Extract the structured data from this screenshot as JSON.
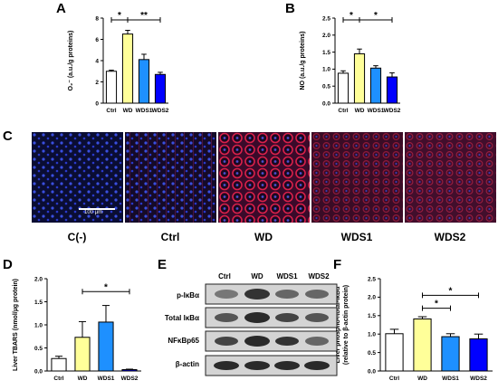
{
  "panels": {
    "A": "A",
    "B": "B",
    "C": "C",
    "D": "D",
    "E": "E",
    "F": "F"
  },
  "colors": {
    "ctrl": "#ffffff",
    "wd": "#ffff99",
    "wds1": "#1e90ff",
    "wds2": "#0000ff",
    "error": "#000000"
  },
  "chart_data": [
    {
      "id": "A",
      "type": "bar",
      "ylabel": "O₂⁻ (a.u./g proteins)",
      "categories": [
        "Ctrl",
        "WD",
        "WDS1",
        "WDS2"
      ],
      "values": [
        3.0,
        6.5,
        4.1,
        2.7
      ],
      "errors": [
        0.1,
        0.35,
        0.5,
        0.2
      ],
      "ylim": [
        0,
        8
      ],
      "yticks": [
        "0",
        "2",
        "4",
        "6",
        "8"
      ],
      "significance": [
        {
          "from": 0,
          "to": 1,
          "label": "*"
        },
        {
          "from": 1,
          "to": 3,
          "label": "**"
        }
      ]
    },
    {
      "id": "B",
      "type": "bar",
      "ylabel": "NO (a.u./g proteins)",
      "categories": [
        "Ctrl",
        "WD",
        "WDS1",
        "WDS2"
      ],
      "values": [
        0.88,
        1.45,
        1.03,
        0.77
      ],
      "errors": [
        0.07,
        0.14,
        0.07,
        0.12
      ],
      "ylim": [
        0,
        2.5
      ],
      "yticks": [
        "0.0",
        "0.5",
        "1.0",
        "1.5",
        "2.0",
        "2.5"
      ],
      "significance": [
        {
          "from": 0,
          "to": 1,
          "label": "*"
        },
        {
          "from": 1,
          "to": 3,
          "label": "*"
        }
      ]
    },
    {
      "id": "D",
      "type": "bar",
      "ylabel": "Liver TBARS (nmol/µg protein)",
      "categories": [
        "Ctrl",
        "WD",
        "WDS1",
        "WDS2"
      ],
      "values": [
        0.27,
        0.73,
        1.06,
        0.03
      ],
      "errors": [
        0.05,
        0.34,
        0.36,
        0.01
      ],
      "ylim": [
        0,
        2.0
      ],
      "yticks": [
        "0.0",
        "0.5",
        "1.0",
        "1.5",
        "2.0"
      ],
      "significance": [
        {
          "from": 1,
          "to": 3,
          "label": "*"
        }
      ]
    },
    {
      "id": "F",
      "type": "bar",
      "ylabel": "Liver phospho-/total-IκBα (relative to β-actin protein)",
      "categories": [
        "Ctrl",
        "WD",
        "WDS1",
        "WDS2"
      ],
      "values": [
        1.01,
        1.41,
        0.93,
        0.87
      ],
      "errors": [
        0.12,
        0.06,
        0.08,
        0.13
      ],
      "ylim": [
        0,
        2.5
      ],
      "yticks": [
        "0.0",
        "0.5",
        "1.0",
        "1.5",
        "2.0",
        "2.5"
      ],
      "significance": [
        {
          "from": 1,
          "to": 2,
          "label": "*"
        },
        {
          "from": 1,
          "to": 3,
          "label": "*"
        }
      ]
    }
  ],
  "microscopy": {
    "labels": [
      "C(-)",
      "Ctrl",
      "WD",
      "WDS1",
      "WDS2"
    ],
    "scale_bar": "100 µm"
  },
  "blot": {
    "lanes": [
      "Ctrl",
      "WD",
      "WDS1",
      "WDS2"
    ],
    "rows": [
      "p-IκBα",
      "Total IκBα",
      "NFκBp65",
      "β-actin"
    ]
  }
}
